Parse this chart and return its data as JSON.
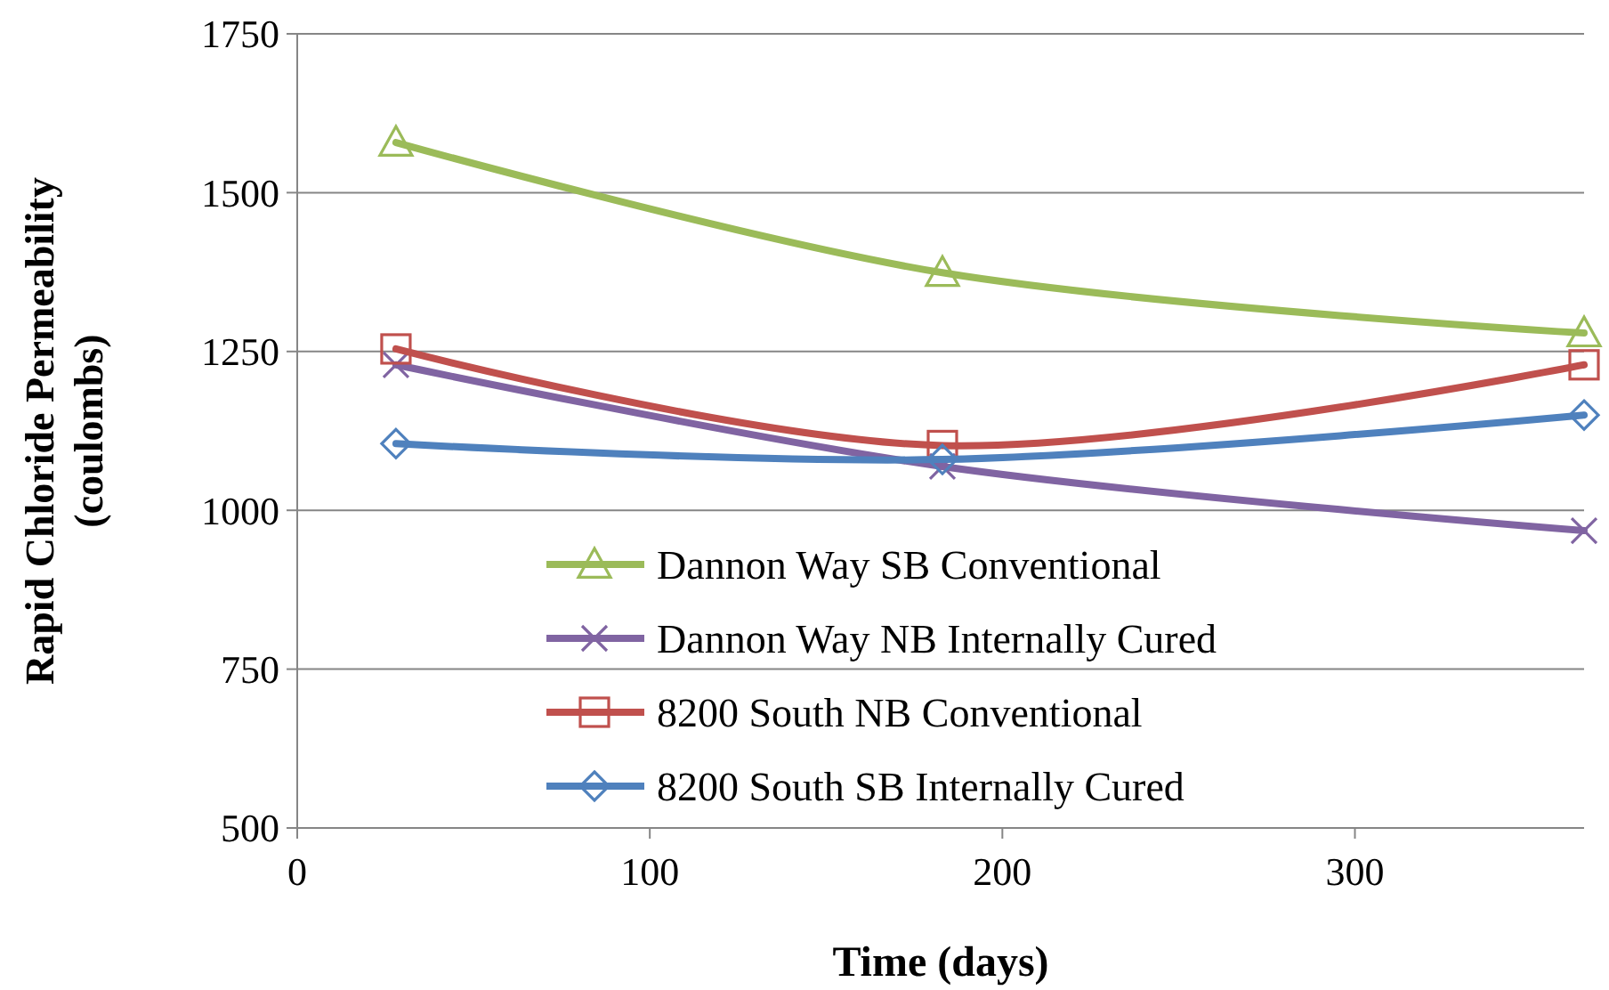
{
  "chart_data": {
    "type": "line",
    "xlabel": "Time (days)",
    "ylabel": "Rapid Chloride Permeability (coulombs)",
    "xlim": [
      0,
      365
    ],
    "xticks": [
      0,
      100,
      200,
      300
    ],
    "ylim": [
      500,
      1750
    ],
    "yticks": [
      500,
      750,
      1000,
      1250,
      1500,
      1750
    ],
    "grid": "y",
    "legend": "bottom",
    "x": [
      28,
      183,
      365
    ],
    "series": [
      {
        "name": "Dannon Way SB Conventional",
        "color": "#9bbb59",
        "marker": "triangle",
        "values": [
          1579,
          1374,
          1279
        ]
      },
      {
        "name": "Dannon Way NB Internally Cured",
        "color": "#8064a2",
        "marker": "cross",
        "values": [
          1229,
          1069,
          968
        ]
      },
      {
        "name": "8200 South NB Conventional",
        "color": "#c0504d",
        "marker": "square",
        "values": [
          1254,
          1102,
          1229
        ]
      },
      {
        "name": "8200 South SB Internally Cured",
        "color": "#4f81bd",
        "marker": "diamond",
        "values": [
          1105,
          1080,
          1150
        ]
      }
    ]
  }
}
